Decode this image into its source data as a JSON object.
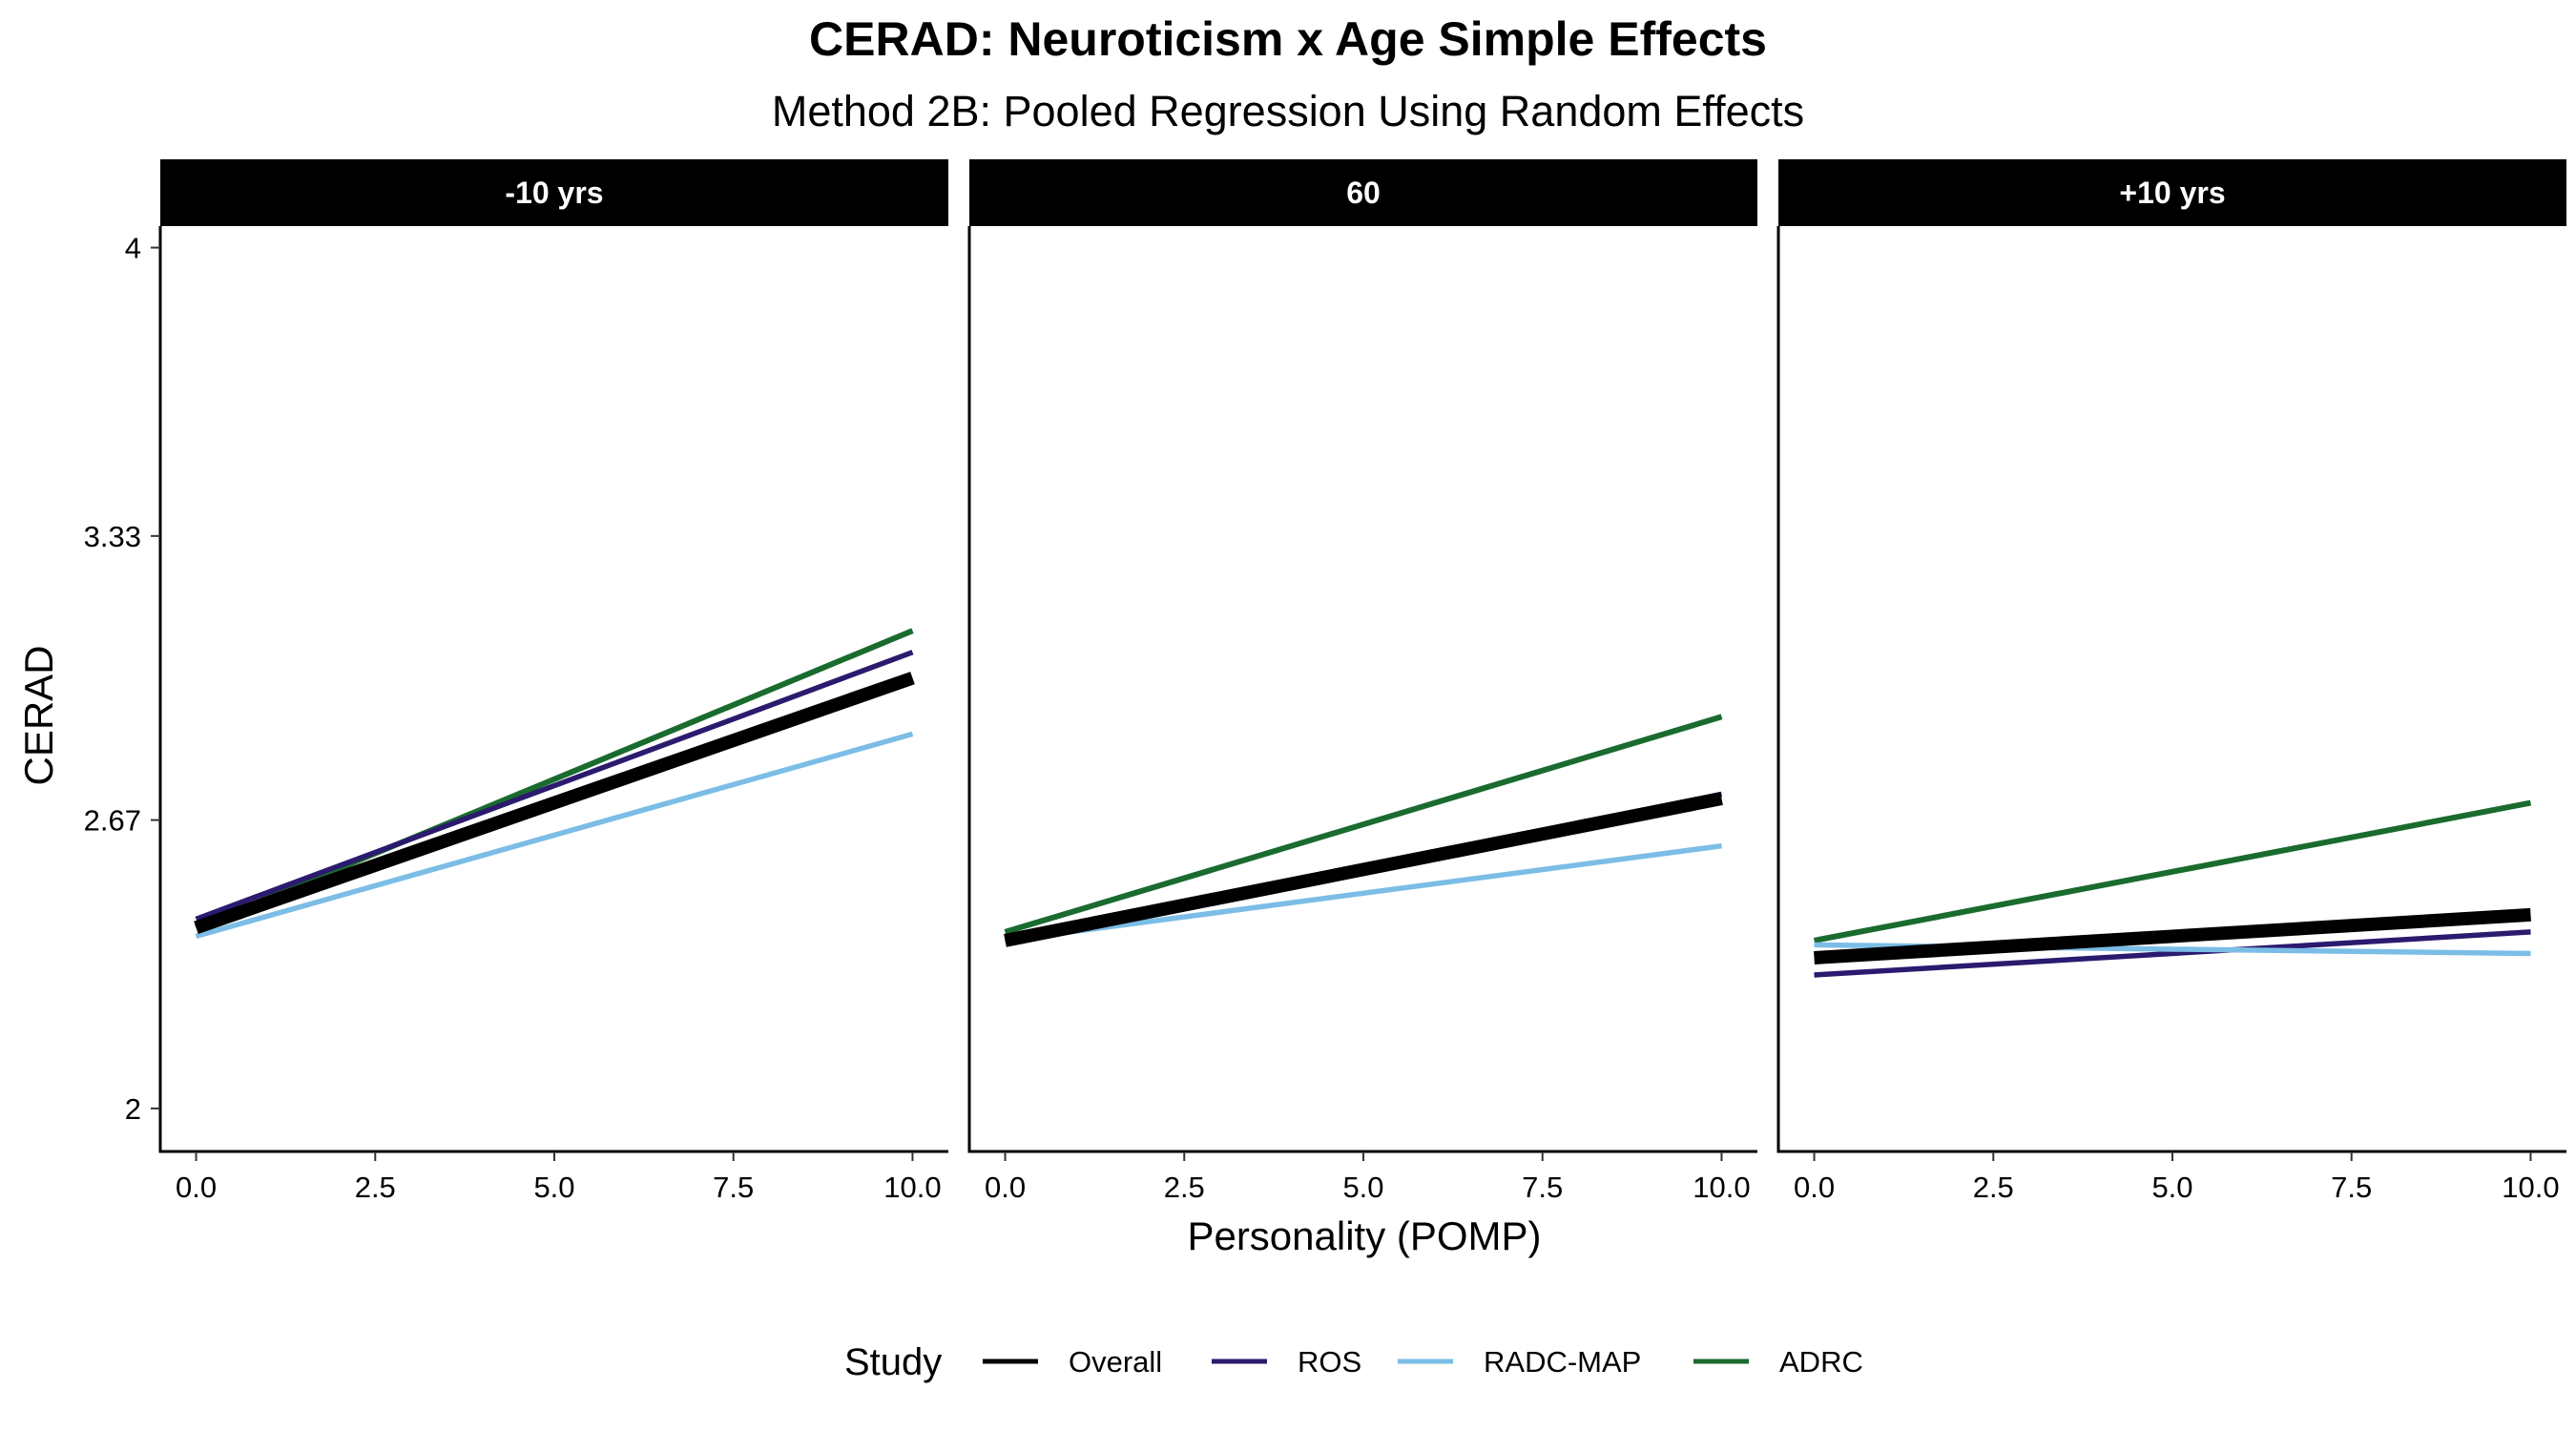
{
  "chart_data": {
    "type": "line",
    "title": "CERAD: Neuroticism x Age Simple Effects",
    "subtitle": "Method 2B: Pooled Regression Using Random Effects",
    "xlabel": "Personality (POMP)",
    "ylabel": "CERAD",
    "xlim": [
      -0.5,
      10.5
    ],
    "ylim": [
      1.9,
      4.05
    ],
    "x_ticks": [
      0,
      2.5,
      5,
      7.5,
      10
    ],
    "x_tick_labels": [
      "0.0",
      "2.5",
      "5.0",
      "7.5",
      "10.0"
    ],
    "y_ticks": [
      2,
      2.67,
      3.33,
      4
    ],
    "y_tick_labels": [
      "2",
      "2.67",
      "3.33",
      "4"
    ],
    "grid": false,
    "legend": {
      "title": "Study",
      "position": "bottom",
      "entries": [
        {
          "name": "Overall",
          "color": "#000000"
        },
        {
          "name": "ROS",
          "color": "#2b1a6e"
        },
        {
          "name": "RADC-MAP",
          "color": "#7bbde6"
        },
        {
          "name": "ADRC",
          "color": "#1a6b2e"
        }
      ]
    },
    "panels": [
      {
        "label": "-10 yrs",
        "series": [
          {
            "name": "ADRC",
            "color": "#1a6b2e",
            "x": [
              0,
              10
            ],
            "y": [
              2.42,
              3.11
            ]
          },
          {
            "name": "ROS",
            "color": "#2b1a6e",
            "x": [
              0,
              10
            ],
            "y": [
              2.44,
              3.06
            ]
          },
          {
            "name": "RADC-MAP",
            "color": "#7bbde6",
            "x": [
              0,
              10
            ],
            "y": [
              2.4,
              2.87
            ]
          },
          {
            "name": "Overall",
            "color": "#000000",
            "x": [
              0,
              10
            ],
            "y": [
              2.42,
              3.0
            ]
          }
        ]
      },
      {
        "label": "60",
        "series": [
          {
            "name": "ADRC",
            "color": "#1a6b2e",
            "x": [
              0,
              10
            ],
            "y": [
              2.41,
              2.91
            ]
          },
          {
            "name": "ROS",
            "color": "#2b1a6e",
            "x": [
              0,
              10
            ],
            "y": [
              2.39,
              2.73
            ]
          },
          {
            "name": "RADC-MAP",
            "color": "#7bbde6",
            "x": [
              0,
              10
            ],
            "y": [
              2.39,
              2.61
            ]
          },
          {
            "name": "Overall",
            "color": "#000000",
            "x": [
              0,
              10
            ],
            "y": [
              2.39,
              2.72
            ]
          }
        ]
      },
      {
        "label": "+10 yrs",
        "series": [
          {
            "name": "ADRC",
            "color": "#1a6b2e",
            "x": [
              0,
              10
            ],
            "y": [
              2.39,
              2.71
            ]
          },
          {
            "name": "ROS",
            "color": "#2b1a6e",
            "x": [
              0,
              10
            ],
            "y": [
              2.31,
              2.41
            ]
          },
          {
            "name": "RADC-MAP",
            "color": "#7bbde6",
            "x": [
              0,
              10
            ],
            "y": [
              2.38,
              2.36
            ]
          },
          {
            "name": "Overall",
            "color": "#000000",
            "x": [
              0,
              10
            ],
            "y": [
              2.35,
              2.45
            ]
          }
        ]
      }
    ]
  }
}
